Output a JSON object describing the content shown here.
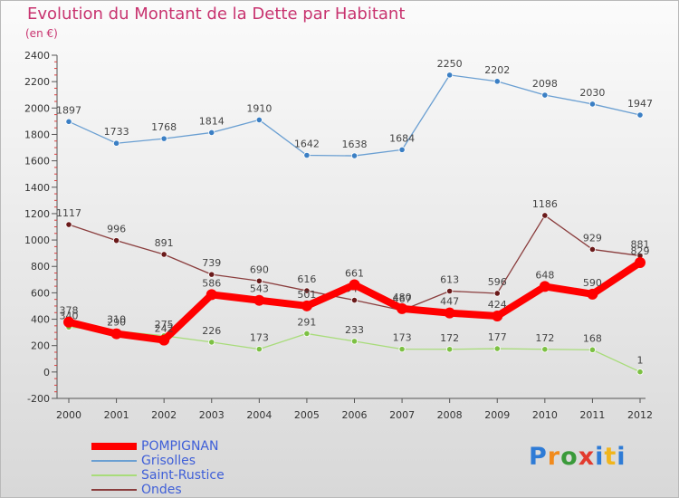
{
  "header": {
    "title": "Evolution du Montant de la Dette par Habitant",
    "subtitle": "(en €)"
  },
  "logo": {
    "text": "Proxiti",
    "colors": [
      "#2e7bd6",
      "#f18a1c",
      "#3a9a3a",
      "#e23b2e",
      "#2e7bd6",
      "#f1b51c",
      "#2e7bd6"
    ]
  },
  "chart_data": {
    "type": "line",
    "x": [
      "2000",
      "2001",
      "2002",
      "2003",
      "2004",
      "2005",
      "2006",
      "2007",
      "2008",
      "2009",
      "2010",
      "2011",
      "2012"
    ],
    "ylim": [
      -200,
      2400
    ],
    "yticks": [
      -200,
      0,
      200,
      400,
      600,
      800,
      1000,
      1200,
      1400,
      1600,
      1800,
      2000,
      2200,
      2400
    ],
    "grid": false,
    "legend_position": "bottom-left",
    "series": [
      {
        "name": "Grisolles",
        "color": "#6a9fd2",
        "marker": "#3b7fc4",
        "values": [
          1897,
          1733,
          1768,
          1814,
          1910,
          1642,
          1638,
          1684,
          2250,
          2202,
          2098,
          2030,
          1947
        ]
      },
      {
        "name": "Saint-Rustice",
        "color": "#a8dc7a",
        "marker": "#7cc043",
        "values": [
          340,
          310,
          275,
          226,
          173,
          291,
          233,
          173,
          172,
          177,
          172,
          168,
          1
        ]
      },
      {
        "name": "Ondes",
        "color": "#8a3d3d",
        "marker": "#6a1a1a",
        "values": [
          1117,
          996,
          891,
          739,
          690,
          616,
          544,
          467,
          613,
          596,
          1186,
          929,
          881
        ]
      },
      {
        "name": "POMPIGNAN",
        "color": "#ff0000",
        "marker": "#ff0000",
        "values": [
          378,
          290,
          242,
          586,
          543,
          501,
          661,
          480,
          447,
          424,
          648,
          590,
          829
        ]
      }
    ]
  }
}
